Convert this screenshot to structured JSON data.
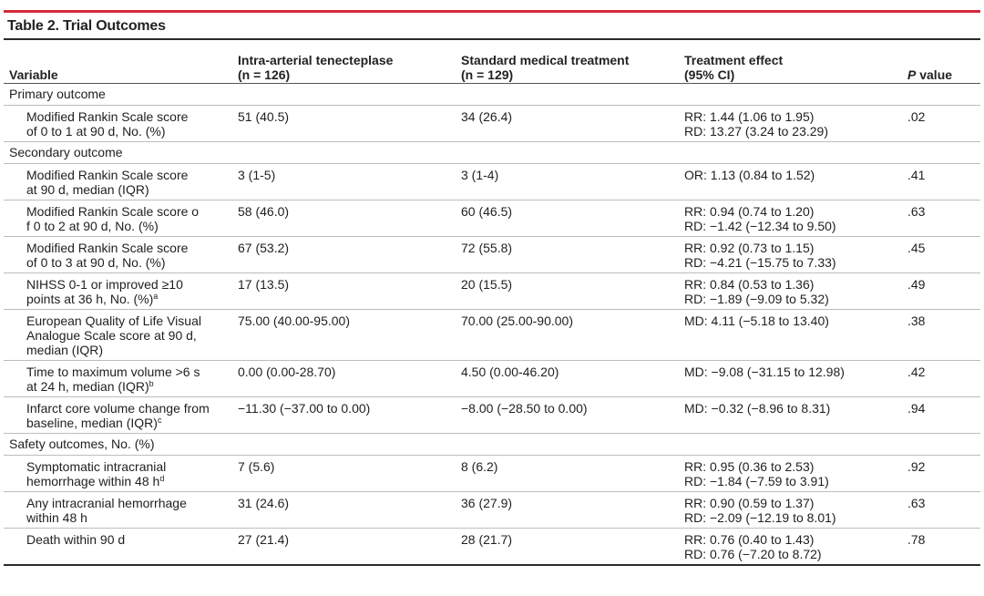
{
  "table": {
    "title": "Table 2. Trial Outcomes",
    "headers": {
      "variable": [
        "Variable"
      ],
      "intervention": [
        "Intra-arterial tenecteplase",
        "(n = 126)"
      ],
      "control": [
        "Standard medical treatment",
        "(n = 129)"
      ],
      "effect": [
        "Treatment effect",
        "(95% CI)"
      ],
      "p": [
        "P value"
      ]
    },
    "sections": [
      {
        "label": "Primary outcome",
        "rows": [
          {
            "variable": [
              "Modified Rankin Scale score",
              "of 0 to 1 at 90 d, No. (%)"
            ],
            "intervention": "51 (40.5)",
            "control": "34 (26.4)",
            "effect": [
              "RR: 1.44 (1.06 to 1.95)",
              "RD: 13.27 (3.24 to 23.29)"
            ],
            "p": ".02"
          }
        ]
      },
      {
        "label": "Secondary outcome",
        "rows": [
          {
            "variable": [
              "Modified Rankin Scale score",
              "at 90 d, median (IQR)"
            ],
            "intervention": "3 (1-5)",
            "control": "3 (1-4)",
            "effect": [
              "OR: 1.13 (0.84 to 1.52)"
            ],
            "p": ".41"
          },
          {
            "variable": [
              "Modified Rankin Scale score o",
              "f 0 to 2 at 90 d, No. (%)"
            ],
            "intervention": "58 (46.0)",
            "control": "60 (46.5)",
            "effect": [
              "RR: 0.94 (0.74 to 1.20)",
              "RD: −1.42 (−12.34 to 9.50)"
            ],
            "p": ".63"
          },
          {
            "variable": [
              "Modified Rankin Scale score",
              "of 0 to 3 at 90 d, No. (%)"
            ],
            "intervention": "67 (53.2)",
            "control": "72 (55.8)",
            "effect": [
              "RR: 0.92 (0.73 to 1.15)",
              "RD: −4.21 (−15.75 to 7.33)"
            ],
            "p": ".45"
          },
          {
            "variable": [
              "NIHSS 0-1 or improved ≥10",
              "points at 36 h, No. (%)"
            ],
            "footnote": "a",
            "intervention": "17 (13.5)",
            "control": "20 (15.5)",
            "effect": [
              "RR: 0.84 (0.53 to 1.36)",
              "RD: −1.89 (−9.09 to 5.32)"
            ],
            "p": ".49"
          },
          {
            "variable": [
              "European Quality of Life Visual",
              "Analogue Scale score at 90 d,",
              "median (IQR)"
            ],
            "intervention": "75.00 (40.00-95.00)",
            "control": "70.00 (25.00-90.00)",
            "effect": [
              "MD: 4.11 (−5.18 to 13.40)"
            ],
            "p": ".38"
          },
          {
            "variable": [
              "Time to maximum volume >6 s",
              "at 24 h, median (IQR)"
            ],
            "footnote": "b",
            "intervention": "0.00 (0.00-28.70)",
            "control": "4.50 (0.00-46.20)",
            "effect": [
              "MD: −9.08 (−31.15 to 12.98)"
            ],
            "p": ".42"
          },
          {
            "variable": [
              "Infarct core volume change from",
              "baseline, median (IQR)"
            ],
            "footnote": "c",
            "intervention": "−11.30 (−37.00 to 0.00)",
            "control": "−8.00 (−28.50 to 0.00)",
            "effect": [
              "MD: −0.32 (−8.96 to 8.31)"
            ],
            "p": ".94"
          }
        ]
      },
      {
        "label": "Safety outcomes, No. (%)",
        "rows": [
          {
            "variable": [
              "Symptomatic intracranial",
              "hemorrhage within 48 h"
            ],
            "footnote": "d",
            "intervention": "7 (5.6)",
            "control": "8 (6.2)",
            "effect": [
              "RR: 0.95 (0.36 to 2.53)",
              "RD: −1.84 (−7.59 to 3.91)"
            ],
            "p": ".92"
          },
          {
            "variable": [
              "Any intracranial hemorrhage",
              "within 48 h"
            ],
            "intervention": "31 (24.6)",
            "control": "36 (27.9)",
            "effect": [
              "RR: 0.90 (0.59 to 1.37)",
              "RD: −2.09 (−12.19 to 8.01)"
            ],
            "p": ".63"
          },
          {
            "variable": [
              "Death within 90 d"
            ],
            "intervention": "27 (21.4)",
            "control": "28 (21.7)",
            "effect": [
              "RR: 0.76 (0.40 to 1.43)",
              "RD: 0.76 (−7.20 to 8.72)"
            ],
            "p": ".78"
          }
        ]
      }
    ]
  }
}
